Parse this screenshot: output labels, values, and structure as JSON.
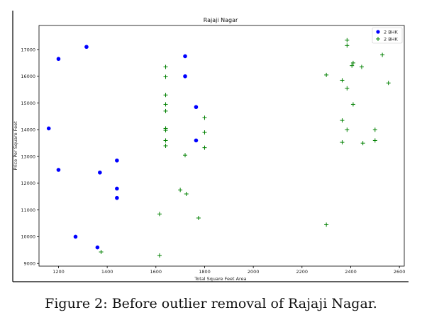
{
  "caption": "Figure 2: Before outlier removal of Rajaji Nagar.",
  "chart_data": {
    "type": "scatter",
    "title": "Rajaji Nagar",
    "xlabel": "Total Square Feet Area",
    "ylabel": "Price Per Square Feet",
    "xlim": [
      1120,
      2620
    ],
    "ylim": [
      8900,
      17900
    ],
    "xticks": [
      1200,
      1400,
      1600,
      1800,
      2000,
      2200,
      2400,
      2600
    ],
    "yticks": [
      9000,
      10000,
      11000,
      12000,
      13000,
      14000,
      15000,
      16000,
      17000
    ],
    "grid": false,
    "legend_position": "top-right",
    "series": [
      {
        "name": "2 BHK",
        "marker": "circle",
        "color": "#0000ff",
        "points": [
          [
            1160,
            14050
          ],
          [
            1200,
            16650
          ],
          [
            1200,
            12500
          ],
          [
            1270,
            10000
          ],
          [
            1315,
            17100
          ],
          [
            1360,
            9600
          ],
          [
            1370,
            12400
          ],
          [
            1440,
            12850
          ],
          [
            1440,
            11800
          ],
          [
            1440,
            11450
          ],
          [
            1720,
            16750
          ],
          [
            1720,
            16000
          ],
          [
            1765,
            14850
          ],
          [
            1765,
            13600
          ]
        ]
      },
      {
        "name": "2 BHK",
        "marker": "plus",
        "color": "#008000",
        "points": [
          [
            1375,
            9430
          ],
          [
            1615,
            9300
          ],
          [
            1615,
            10850
          ],
          [
            1640,
            16350
          ],
          [
            1640,
            15980
          ],
          [
            1640,
            15300
          ],
          [
            1640,
            14950
          ],
          [
            1640,
            14700
          ],
          [
            1640,
            14050
          ],
          [
            1640,
            13980
          ],
          [
            1640,
            13600
          ],
          [
            1640,
            13400
          ],
          [
            1700,
            11750
          ],
          [
            1720,
            13050
          ],
          [
            1725,
            11600
          ],
          [
            1775,
            10700
          ],
          [
            1800,
            14450
          ],
          [
            1800,
            13900
          ],
          [
            1800,
            13330
          ],
          [
            2300,
            16050
          ],
          [
            2300,
            10450
          ],
          [
            2365,
            15850
          ],
          [
            2365,
            14350
          ],
          [
            2365,
            13530
          ],
          [
            2385,
            17350
          ],
          [
            2385,
            17150
          ],
          [
            2385,
            15550
          ],
          [
            2385,
            14000
          ],
          [
            2405,
            16400
          ],
          [
            2410,
            16500
          ],
          [
            2410,
            14950
          ],
          [
            2445,
            16350
          ],
          [
            2450,
            13500
          ],
          [
            2500,
            14000
          ],
          [
            2500,
            13600
          ],
          [
            2530,
            16800
          ],
          [
            2555,
            15750
          ]
        ]
      }
    ]
  }
}
